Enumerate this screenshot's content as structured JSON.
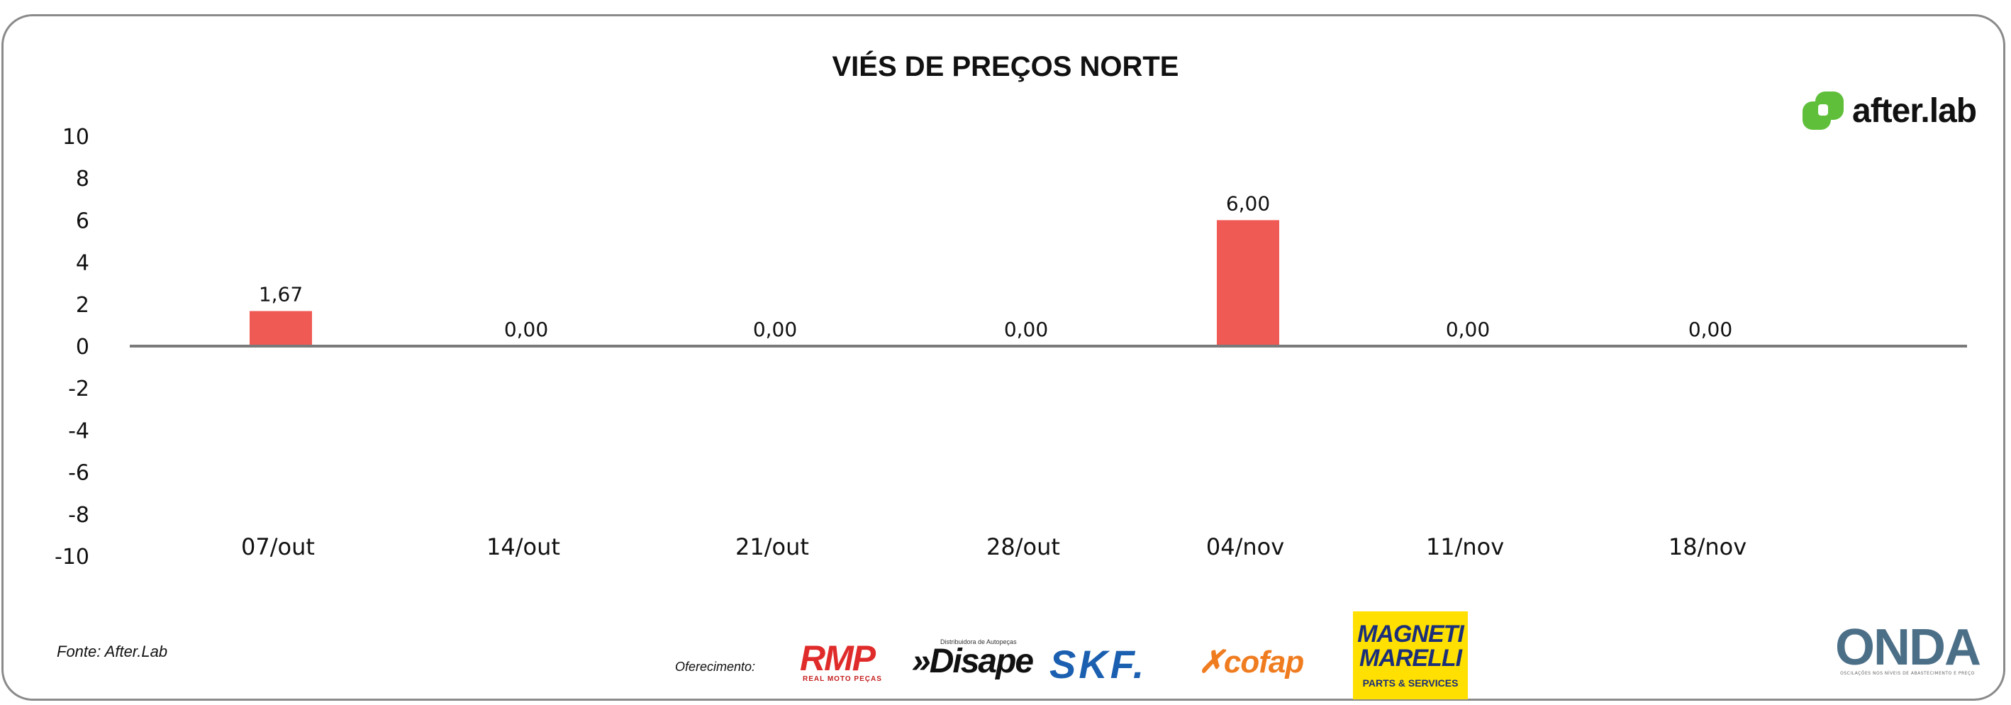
{
  "chart_data": {
    "type": "bar",
    "title": "VIÉS DE PREÇOS NORTE",
    "categories": [
      "07/out",
      "14/out",
      "21/out",
      "28/out",
      "04/nov",
      "11/nov",
      "18/nov"
    ],
    "values": [
      1.67,
      0.0,
      0.0,
      0.0,
      6.0,
      0.0,
      0.0
    ],
    "value_labels": [
      "1,67",
      "0,00",
      "0,00",
      "0,00",
      "6,00",
      "0,00",
      "0,00"
    ],
    "ylim": [
      -10,
      10
    ],
    "yticks": [
      10,
      8,
      6,
      4,
      2,
      0,
      -2,
      -4,
      -6,
      -8,
      -10
    ],
    "ytick_labels": [
      "10",
      "8",
      "6",
      "4",
      "2",
      "0",
      "-2",
      "-4",
      "-6",
      "-8",
      "-10"
    ],
    "xlabel": "",
    "ylabel": "",
    "grid": false,
    "legend": null,
    "bar_color": "#f05a55",
    "axis_color": "#7a7a7a"
  },
  "source": "Fonte: After.Lab",
  "sponsor_label": "Oferecimento:",
  "logos": {
    "afterlab": "after.lab",
    "rmp": "RMP",
    "rmp_sub": "REAL MOTO PEÇAS",
    "disape_sub": "Distribuidora de Autopeças",
    "disape": "»Disape",
    "skf": "SKF.",
    "cofap": "cofap",
    "magneti": "MAGNETI MARELLI",
    "magneti_sub": "PARTS & SERVICES",
    "onda": "ONDA",
    "onda_sub": "OSCILAÇÕES NOS NÍVEIS DE ABASTECIMENTO E PREÇO"
  },
  "colors": {
    "afterlab_green": "#5fbf3a"
  }
}
